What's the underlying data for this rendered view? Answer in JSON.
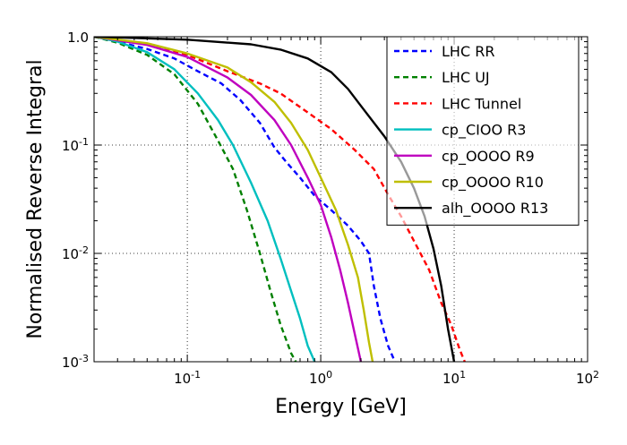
{
  "chart_data": {
    "type": "line",
    "title": "",
    "xlabel": "Energy [GeV]",
    "ylabel": "Normalised Reverse Integral",
    "xscale": "log",
    "yscale": "log",
    "xlim": [
      0.02,
      100
    ],
    "ylim": [
      0.001,
      1.0
    ],
    "grid": true,
    "legend_position": "top-right",
    "x_ticks": [
      {
        "value": 0.1,
        "base": "10",
        "exp": "-1"
      },
      {
        "value": 1,
        "base": "10",
        "exp": "0"
      },
      {
        "value": 10,
        "base": "10",
        "exp": "1"
      },
      {
        "value": 100,
        "base": "10",
        "exp": "2"
      }
    ],
    "y_ticks": [
      {
        "value": 1.0,
        "label": "1.0",
        "base": "1.0",
        "exp": "0"
      },
      {
        "value": 0.1,
        "label": "10^-1",
        "base": "10",
        "exp": "-1"
      },
      {
        "value": 0.01,
        "label": "10^-2",
        "base": "10",
        "exp": "-2"
      },
      {
        "value": 0.001,
        "label": "10^-3",
        "base": "10",
        "exp": "-3"
      }
    ],
    "series": [
      {
        "name": "LHC RR",
        "color": "#0000ff",
        "dash": "dashed",
        "points": [
          [
            0.02,
            1.0
          ],
          [
            0.03,
            0.9
          ],
          [
            0.05,
            0.77
          ],
          [
            0.08,
            0.63
          ],
          [
            0.12,
            0.48
          ],
          [
            0.18,
            0.37
          ],
          [
            0.25,
            0.26
          ],
          [
            0.35,
            0.16
          ],
          [
            0.45,
            0.095
          ],
          [
            0.55,
            0.07
          ],
          [
            0.7,
            0.05
          ],
          [
            0.9,
            0.034
          ],
          [
            1.2,
            0.025
          ],
          [
            1.6,
            0.018
          ],
          [
            2.0,
            0.013
          ],
          [
            2.3,
            0.01
          ],
          [
            2.5,
            0.005
          ],
          [
            2.8,
            0.0025
          ],
          [
            3.2,
            0.0014
          ],
          [
            3.6,
            0.001
          ]
        ]
      },
      {
        "name": "LHC UJ",
        "color": "#008000",
        "dash": "dashed",
        "points": [
          [
            0.02,
            1.0
          ],
          [
            0.03,
            0.88
          ],
          [
            0.05,
            0.68
          ],
          [
            0.08,
            0.45
          ],
          [
            0.12,
            0.24
          ],
          [
            0.17,
            0.11
          ],
          [
            0.22,
            0.06
          ],
          [
            0.28,
            0.025
          ],
          [
            0.35,
            0.01
          ],
          [
            0.42,
            0.0045
          ],
          [
            0.5,
            0.0022
          ],
          [
            0.6,
            0.0012
          ],
          [
            0.65,
            0.001
          ]
        ]
      },
      {
        "name": "LHC Tunnel",
        "color": "#ff0000",
        "dash": "dashed",
        "points": [
          [
            0.02,
            1.0
          ],
          [
            0.05,
            0.86
          ],
          [
            0.1,
            0.68
          ],
          [
            0.2,
            0.48
          ],
          [
            0.35,
            0.37
          ],
          [
            0.5,
            0.3
          ],
          [
            0.8,
            0.2
          ],
          [
            1.2,
            0.14
          ],
          [
            1.8,
            0.09
          ],
          [
            2.5,
            0.06
          ],
          [
            3.2,
            0.035
          ],
          [
            4.0,
            0.022
          ],
          [
            5.0,
            0.013
          ],
          [
            6.5,
            0.007
          ],
          [
            8.0,
            0.0035
          ],
          [
            9.5,
            0.0022
          ],
          [
            11.0,
            0.0013
          ],
          [
            12.0,
            0.001
          ]
        ]
      },
      {
        "name": "cp_CIOO R3",
        "color": "#00bfbf",
        "dash": "solid",
        "points": [
          [
            0.02,
            1.0
          ],
          [
            0.03,
            0.9
          ],
          [
            0.05,
            0.72
          ],
          [
            0.08,
            0.5
          ],
          [
            0.12,
            0.3
          ],
          [
            0.17,
            0.17
          ],
          [
            0.22,
            0.1
          ],
          [
            0.3,
            0.045
          ],
          [
            0.4,
            0.02
          ],
          [
            0.5,
            0.009
          ],
          [
            0.6,
            0.0045
          ],
          [
            0.7,
            0.0025
          ],
          [
            0.8,
            0.0014
          ],
          [
            0.9,
            0.001
          ]
        ]
      },
      {
        "name": "cp_OOOO R9",
        "color": "#bf00bf",
        "dash": "solid",
        "points": [
          [
            0.02,
            1.0
          ],
          [
            0.05,
            0.84
          ],
          [
            0.1,
            0.65
          ],
          [
            0.2,
            0.42
          ],
          [
            0.3,
            0.29
          ],
          [
            0.45,
            0.17
          ],
          [
            0.6,
            0.1
          ],
          [
            0.8,
            0.05
          ],
          [
            1.0,
            0.028
          ],
          [
            1.2,
            0.014
          ],
          [
            1.4,
            0.007
          ],
          [
            1.6,
            0.0035
          ],
          [
            1.8,
            0.0018
          ],
          [
            2.0,
            0.001
          ]
        ]
      },
      {
        "name": "cp_OOOO R10",
        "color": "#bfbf00",
        "dash": "solid",
        "points": [
          [
            0.02,
            1.0
          ],
          [
            0.05,
            0.87
          ],
          [
            0.1,
            0.7
          ],
          [
            0.2,
            0.52
          ],
          [
            0.3,
            0.38
          ],
          [
            0.45,
            0.25
          ],
          [
            0.6,
            0.16
          ],
          [
            0.8,
            0.09
          ],
          [
            1.0,
            0.05
          ],
          [
            1.3,
            0.025
          ],
          [
            1.6,
            0.012
          ],
          [
            1.9,
            0.006
          ],
          [
            2.1,
            0.003
          ],
          [
            2.3,
            0.0015
          ],
          [
            2.45,
            0.001
          ]
        ]
      },
      {
        "name": "alh_OOOO R13",
        "color": "#000000",
        "dash": "solid",
        "points": [
          [
            0.02,
            1.0
          ],
          [
            0.1,
            0.94
          ],
          [
            0.3,
            0.85
          ],
          [
            0.5,
            0.76
          ],
          [
            0.8,
            0.63
          ],
          [
            1.2,
            0.47
          ],
          [
            1.6,
            0.33
          ],
          [
            2.0,
            0.23
          ],
          [
            3.0,
            0.12
          ],
          [
            4.0,
            0.07
          ],
          [
            5.0,
            0.04
          ],
          [
            6.0,
            0.022
          ],
          [
            7.0,
            0.011
          ],
          [
            8.0,
            0.005
          ],
          [
            9.0,
            0.002
          ],
          [
            10.0,
            0.001
          ]
        ]
      }
    ]
  }
}
